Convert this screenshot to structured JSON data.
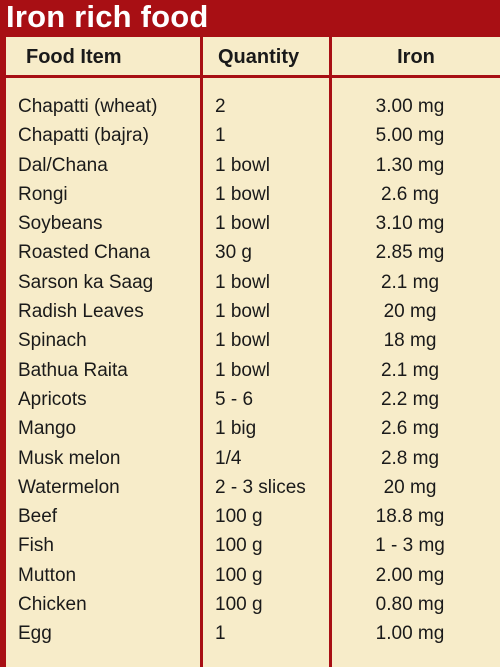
{
  "title": "Iron rich food",
  "columns": [
    "Food Item",
    "Quantity",
    "Iron"
  ],
  "rows": [
    [
      "Chapatti (wheat)",
      "2",
      "3.00 mg"
    ],
    [
      "Chapatti (bajra)",
      "1",
      "5.00 mg"
    ],
    [
      "Dal/Chana",
      "1 bowl",
      "1.30 mg"
    ],
    [
      "Rongi",
      "1 bowl",
      "2.6 mg"
    ],
    [
      "Soybeans",
      "1 bowl",
      "3.10 mg"
    ],
    [
      "Roasted Chana",
      "30 g",
      "2.85 mg"
    ],
    [
      "Sarson ka Saag",
      "1 bowl",
      "2.1 mg"
    ],
    [
      "Radish Leaves",
      "1 bowl",
      "20 mg"
    ],
    [
      "Spinach",
      "1 bowl",
      "18 mg"
    ],
    [
      "Bathua Raita",
      "1 bowl",
      "2.1 mg"
    ],
    [
      "Apricots",
      "5 - 6",
      "2.2 mg"
    ],
    [
      "Mango",
      "1 big",
      "2.6 mg"
    ],
    [
      "Musk melon",
      "1/4",
      "2.8 mg"
    ],
    [
      "Watermelon",
      "2 - 3 slices",
      "20 mg"
    ],
    [
      "Beef",
      "100 g",
      "18.8 mg"
    ],
    [
      "Fish",
      "100 g",
      "1 - 3 mg"
    ],
    [
      "Mutton",
      "100 g",
      "2.00 mg"
    ],
    [
      "Chicken",
      "100 g",
      "0.80 mg"
    ],
    [
      "Egg",
      "1",
      "1.00 mg"
    ]
  ],
  "colors": {
    "frame": "#a80f14",
    "panel": "#f7ecc9",
    "text": "#1a1a1a",
    "title": "#ffffff"
  }
}
